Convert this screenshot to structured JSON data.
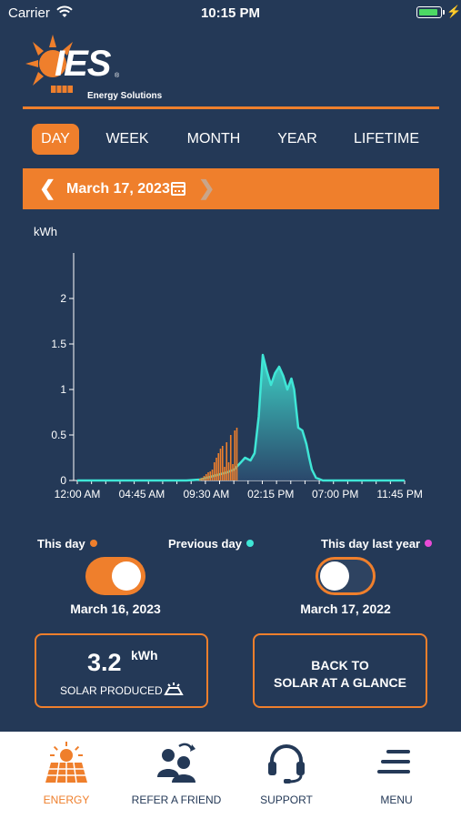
{
  "status_bar": {
    "carrier": "Carrier",
    "time": "10:15 PM"
  },
  "brand": {
    "logo_letters": "IES",
    "subtitle": "Energy Solutions",
    "registered_mark": "®"
  },
  "tabs": [
    {
      "label": "DAY",
      "active": true
    },
    {
      "label": "WEEK",
      "active": false
    },
    {
      "label": "MONTH",
      "active": false
    },
    {
      "label": "YEAR",
      "active": false
    },
    {
      "label": "LIFETIME",
      "active": false
    }
  ],
  "date_nav": {
    "date": "March 17, 2023",
    "prev_icon": "chevron-left-icon",
    "next_icon": "chevron-right-icon",
    "calendar_icon": "calendar-icon"
  },
  "chart_data": {
    "type": "area",
    "ylabel": "kWh",
    "ylim": [
      0,
      2.5
    ],
    "yticks": [
      "0",
      "0.5",
      "1",
      "1.5",
      "2"
    ],
    "xticks": [
      "12:00 AM",
      "04:45 AM",
      "09:30 AM",
      "02:15 PM",
      "07:00 PM",
      "11:45 PM"
    ],
    "xlim_hours": [
      0,
      24
    ],
    "series": [
      {
        "kind": "area",
        "color": "#3fe6d6",
        "points": [
          [
            0,
            0
          ],
          [
            8.0,
            0
          ],
          [
            9.0,
            0.01
          ],
          [
            9.5,
            0.03
          ],
          [
            10.0,
            0.05
          ],
          [
            10.5,
            0.07
          ],
          [
            11.0,
            0.09
          ],
          [
            11.5,
            0.12
          ],
          [
            12.0,
            0.2
          ],
          [
            12.3,
            0.25
          ],
          [
            12.7,
            0.22
          ],
          [
            13.0,
            0.3
          ],
          [
            13.3,
            0.7
          ],
          [
            13.6,
            1.38
          ],
          [
            13.9,
            1.2
          ],
          [
            14.2,
            1.05
          ],
          [
            14.5,
            1.18
          ],
          [
            14.8,
            1.25
          ],
          [
            15.1,
            1.15
          ],
          [
            15.4,
            1.0
          ],
          [
            15.7,
            1.12
          ],
          [
            15.9,
            1.0
          ],
          [
            16.2,
            0.58
          ],
          [
            16.5,
            0.55
          ],
          [
            16.8,
            0.4
          ],
          [
            17.0,
            0.25
          ],
          [
            17.2,
            0.12
          ],
          [
            17.5,
            0.03
          ],
          [
            18.0,
            0
          ],
          [
            24,
            0
          ]
        ]
      },
      {
        "kind": "bar",
        "color": "#ef7f2c",
        "points": [
          [
            9.0,
            0.02
          ],
          [
            9.15,
            0.03
          ],
          [
            9.3,
            0.05
          ],
          [
            9.45,
            0.07
          ],
          [
            9.6,
            0.09
          ],
          [
            9.75,
            0.1
          ],
          [
            9.9,
            0.12
          ],
          [
            10.05,
            0.2
          ],
          [
            10.2,
            0.25
          ],
          [
            10.35,
            0.3
          ],
          [
            10.5,
            0.35
          ],
          [
            10.65,
            0.38
          ],
          [
            10.8,
            0.15
          ],
          [
            10.95,
            0.42
          ],
          [
            11.1,
            0.2
          ],
          [
            11.25,
            0.5
          ],
          [
            11.4,
            0.18
          ],
          [
            11.55,
            0.55
          ],
          [
            11.7,
            0.58
          ]
        ]
      }
    ]
  },
  "legend": [
    {
      "label": "This day",
      "color": "#ef7f2c"
    },
    {
      "label": "Previous day",
      "color": "#3fe6d6"
    },
    {
      "label": "This day last year",
      "color": "#e84bd6"
    }
  ],
  "toggles": [
    {
      "date": "March 16, 2023",
      "on": true
    },
    {
      "date": "March 17, 2022",
      "on": false
    }
  ],
  "solar_card": {
    "value": "3.2",
    "unit": "kWh",
    "label": "SOLAR PRODUCED"
  },
  "back_card": {
    "line1": "BACK TO",
    "line2": "SOLAR AT A GLANCE"
  },
  "bottom_nav": [
    {
      "label": "ENERGY",
      "icon": "solar-panel-icon",
      "active": true
    },
    {
      "label": "REFER A FRIEND",
      "icon": "refer-friend-icon",
      "active": false
    },
    {
      "label": "SUPPORT",
      "icon": "headset-icon",
      "active": false
    },
    {
      "label": "MENU",
      "icon": "menu-icon",
      "active": false
    }
  ]
}
